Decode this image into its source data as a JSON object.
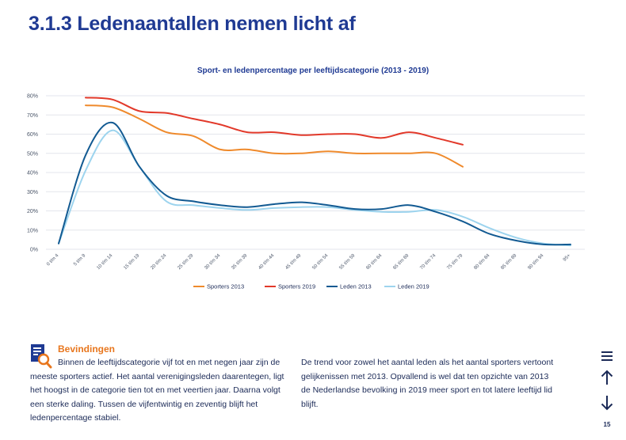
{
  "header": {
    "title": "3.1.3 Ledenaantallen nemen licht af"
  },
  "chart_data": {
    "type": "line",
    "title": "Sport- en ledenpercentage per leeftijdscategorie (2013 - 2019)",
    "categories": [
      "0 t/m 4",
      "5 t/m 9",
      "10 t/m 14",
      "15 t/m 19",
      "20 t/m 24",
      "25 t/m 29",
      "30 t/m 34",
      "35 t/m 39",
      "40 t/m 44",
      "45 t/m 49",
      "50 t/m 54",
      "55 t/m 59",
      "60 t/m 64",
      "65 t/m 69",
      "70 t/m 74",
      "75 t/m 79",
      "80 t/m 84",
      "85 t/m 89",
      "90 t/m 94",
      "95+"
    ],
    "y_tick_labels": [
      "0%",
      "10%",
      "20%",
      "30%",
      "40%",
      "50%",
      "60%",
      "70%",
      "80%"
    ],
    "ylim": [
      0,
      80
    ],
    "grid": true,
    "legend_position": "bottom",
    "series": [
      {
        "name": "Sporters 2013",
        "color": "#ef8a2c",
        "values": [
          null,
          75,
          74,
          68,
          61,
          59,
          52,
          52,
          50,
          50,
          51,
          50,
          50,
          50,
          50,
          43,
          null,
          null,
          null,
          null
        ]
      },
      {
        "name": "Sporters 2019",
        "color": "#e2392a",
        "values": [
          null,
          79,
          78,
          72,
          71,
          68,
          65,
          61,
          61,
          59.5,
          60,
          60,
          58,
          61,
          58,
          54.5,
          null,
          null,
          null,
          null
        ]
      },
      {
        "name": "Leden 2013",
        "color": "#125a92",
        "values": [
          3,
          49,
          66,
          43,
          28,
          25,
          23,
          22,
          23.5,
          24.5,
          23,
          21,
          21,
          23,
          19.5,
          14.5,
          8,
          4.5,
          2.5,
          2.5
        ]
      },
      {
        "name": "Leden 2019",
        "color": "#9dd4ee",
        "values": [
          3,
          41,
          62,
          43,
          25,
          23,
          21.5,
          20.5,
          21.5,
          22,
          22,
          20.5,
          19.5,
          19.5,
          20.5,
          17,
          11,
          6,
          3,
          2
        ]
      }
    ]
  },
  "findings": {
    "heading": "Bevindingen",
    "icon": "document-magnifier-icon",
    "left_text": "Binnen de leeftijdscategorie vijf tot en met negen jaar zijn de meeste sporters actief. Het aantal verenigingsleden daarentegen, ligt het hoogst in de categorie tien tot en met veertien jaar. Daarna volgt een sterke daling. Tussen de vijfentwintig en zeventig blijft het ledenpercentage stabiel.",
    "right_text": "De trend voor zowel het aantal leden als het aantal sporters vertoont gelijkenissen met 2013. Opvallend is wel dat ten opzichte van 2013 de Nederlandse bevolking in 2019 meer sport en tot latere leeftijd lid blijft."
  },
  "nav": {
    "menu_icon": "menu-icon",
    "up_icon": "arrow-up-icon",
    "down_icon": "arrow-down-icon",
    "page_number": "15"
  },
  "colors": {
    "title": "#1f3a93",
    "accent": "#e8761d",
    "text": "#1b2a57",
    "grid": "#e3e6ec"
  }
}
